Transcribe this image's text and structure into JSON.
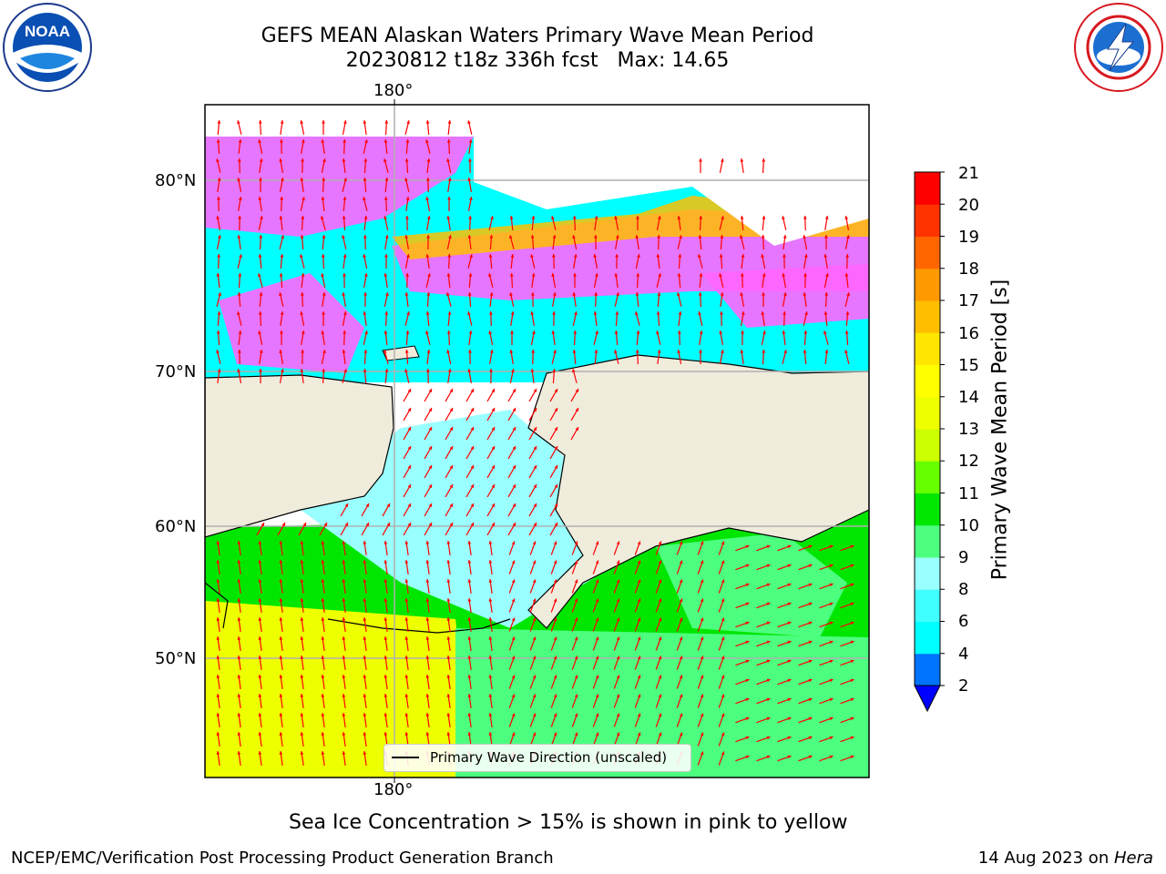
{
  "header": {
    "title_line1": "GEFS MEAN Alaskan Waters Primary Wave Mean Period",
    "title_line2": "20230812 t18z 336h fcst   Max: 14.65"
  },
  "logos": {
    "left": {
      "icon": "noaa-logo",
      "text": "NOAA",
      "ring_text": "NATIONAL OCEANIC AND ATMOSPHERIC ADMINISTRATION · U.S. DEPARTMENT OF COMMERCE"
    },
    "right": {
      "icon": "nws-logo",
      "ring_text": "NATIONAL WEATHER SERVICE"
    }
  },
  "map": {
    "lon_label_top": "180°",
    "lon_label_bottom": "180°",
    "lat_labels": [
      "80°N",
      "70°N",
      "60°N",
      "50°N"
    ],
    "legend_label": "Primary Wave Direction (unscaled)",
    "land_color": "#efecdc",
    "arrow_color": "#ff0000"
  },
  "colorbar": {
    "label": "Primary Wave Mean Period [s]",
    "ticks": [
      "2",
      "4",
      "6",
      "8",
      "9",
      "10",
      "11",
      "12",
      "13",
      "14",
      "15",
      "16",
      "17",
      "18",
      "19",
      "20",
      "21"
    ],
    "colors": [
      "#0073ff",
      "#00ffff",
      "#40ffff",
      "#99ffff",
      "#4cff7f",
      "#00e600",
      "#66ff00",
      "#ccff00",
      "#eeff00",
      "#ffff00",
      "#ffe600",
      "#ffbf00",
      "#ff9900",
      "#ff6600",
      "#ff3300",
      "#ff0000"
    ],
    "extend_color": "#0000ff"
  },
  "note": "Sea Ice Concentration > 15% is shown in pink to yellow",
  "footer": {
    "left": "NCEP/EMC/Verification Post Processing Product Generation Branch",
    "date": "14 Aug 2023 on ",
    "machine": "Hera"
  }
}
